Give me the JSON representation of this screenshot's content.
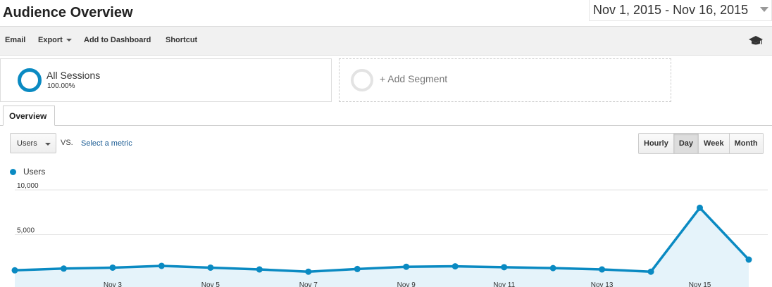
{
  "header": {
    "title": "Audience Overview",
    "date_range": "Nov 1, 2015 - Nov 16, 2015"
  },
  "toolbar": {
    "items": [
      {
        "label": "Email",
        "has_caret": false
      },
      {
        "label": "Export",
        "has_caret": true
      },
      {
        "label": "Add to Dashboard",
        "has_caret": false
      },
      {
        "label": "Shortcut",
        "has_caret": false
      }
    ],
    "help_icon": "graduation-cap-icon"
  },
  "segments": {
    "active": {
      "name": "All Sessions",
      "percent": "100.00%"
    },
    "add_label": "+ Add Segment"
  },
  "tabs": {
    "overview": "Overview"
  },
  "controls": {
    "metric": "Users",
    "vs": "VS.",
    "select_metric": "Select a metric",
    "periods": [
      "Hourly",
      "Day",
      "Week",
      "Month"
    ],
    "active_period": "Day"
  },
  "colors": {
    "series": "#0a8ac2",
    "fill": "#e5f3fa"
  },
  "chart_data": {
    "type": "area",
    "x": [
      "Nov 1",
      "Nov 2",
      "Nov 3",
      "Nov 4",
      "Nov 5",
      "Nov 6",
      "Nov 7",
      "Nov 8",
      "Nov 9",
      "Nov 10",
      "Nov 11",
      "Nov 12",
      "Nov 13",
      "Nov 14",
      "Nov 15",
      "Nov 16"
    ],
    "x_tick_labels": [
      "Nov 3",
      "Nov 5",
      "Nov 7",
      "Nov 9",
      "Nov 11",
      "Nov 13",
      "Nov 15"
    ],
    "series": [
      {
        "name": "Users",
        "values": [
          1000,
          1200,
          1300,
          1500,
          1300,
          1100,
          850,
          1150,
          1400,
          1450,
          1350,
          1250,
          1100,
          850,
          8000,
          2200
        ]
      }
    ],
    "y_ticks": [
      "5,000",
      "10,000"
    ],
    "ylim": [
      0,
      10000
    ],
    "grid": true,
    "legend": "top-left"
  }
}
